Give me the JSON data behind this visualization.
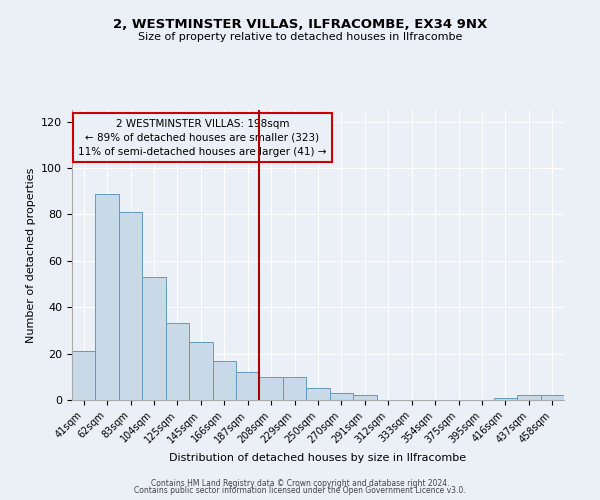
{
  "title": "2, WESTMINSTER VILLAS, ILFRACOMBE, EX34 9NX",
  "subtitle": "Size of property relative to detached houses in Ilfracombe",
  "xlabel": "Distribution of detached houses by size in Ilfracombe",
  "ylabel": "Number of detached properties",
  "categories": [
    "41sqm",
    "62sqm",
    "83sqm",
    "104sqm",
    "125sqm",
    "145sqm",
    "166sqm",
    "187sqm",
    "208sqm",
    "229sqm",
    "250sqm",
    "270sqm",
    "291sqm",
    "312sqm",
    "333sqm",
    "354sqm",
    "375sqm",
    "395sqm",
    "416sqm",
    "437sqm",
    "458sqm"
  ],
  "values": [
    21,
    89,
    81,
    53,
    33,
    25,
    17,
    12,
    10,
    10,
    5,
    3,
    2,
    0,
    0,
    0,
    0,
    0,
    1,
    2,
    2
  ],
  "bar_color": "#c8d9e8",
  "bar_edge_color": "#6699bb",
  "vline_x_index": 7.5,
  "vline_color": "#aa0000",
  "annotation_text": "2 WESTMINSTER VILLAS: 198sqm\n← 89% of detached houses are smaller (323)\n11% of semi-detached houses are larger (41) →",
  "annotation_box_color": "#cc0000",
  "ylim": [
    0,
    125
  ],
  "yticks": [
    0,
    20,
    40,
    60,
    80,
    100,
    120
  ],
  "background_color": "#eaf0f6",
  "footer_line1": "Contains HM Land Registry data © Crown copyright and database right 2024.",
  "footer_line2": "Contains public sector information licensed under the Open Government Licence v3.0."
}
